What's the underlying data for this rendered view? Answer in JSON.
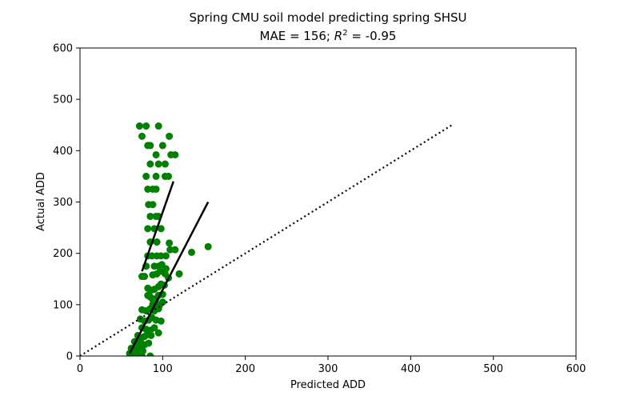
{
  "chart_data": {
    "type": "scatter",
    "title_line1": "Spring CMU soil model predicting spring SHSU",
    "title_line2_prefix": "MAE = 156; ",
    "title_line2_r": "R",
    "title_line2_sup": "2",
    "title_line2_suffix": " = -0.95",
    "xlabel": "Predicted ADD",
    "ylabel": "Actual ADD",
    "xlim": [
      0,
      600
    ],
    "ylim": [
      0,
      600
    ],
    "xticks": [
      0,
      100,
      200,
      300,
      400,
      500,
      600
    ],
    "yticks": [
      0,
      100,
      200,
      300,
      400,
      500,
      600
    ],
    "grid": false,
    "point_color": "#008000",
    "points": [
      [
        72,
        448
      ],
      [
        80,
        448
      ],
      [
        95,
        448
      ],
      [
        75,
        428
      ],
      [
        108,
        428
      ],
      [
        82,
        410
      ],
      [
        85,
        410
      ],
      [
        100,
        410
      ],
      [
        110,
        392
      ],
      [
        115,
        392
      ],
      [
        92,
        392
      ],
      [
        85,
        374
      ],
      [
        95,
        374
      ],
      [
        103,
        374
      ],
      [
        80,
        350
      ],
      [
        92,
        350
      ],
      [
        103,
        350
      ],
      [
        107,
        350
      ],
      [
        82,
        325
      ],
      [
        88,
        325
      ],
      [
        92,
        325
      ],
      [
        88,
        295
      ],
      [
        83,
        295
      ],
      [
        85,
        272
      ],
      [
        92,
        272
      ],
      [
        95,
        272
      ],
      [
        82,
        248
      ],
      [
        90,
        248
      ],
      [
        98,
        248
      ],
      [
        85,
        222
      ],
      [
        93,
        222
      ],
      [
        108,
        220
      ],
      [
        87,
        195
      ],
      [
        82,
        195
      ],
      [
        93,
        195
      ],
      [
        98,
        195
      ],
      [
        104,
        195
      ],
      [
        109,
        207
      ],
      [
        115,
        207
      ],
      [
        80,
        175
      ],
      [
        90,
        175
      ],
      [
        95,
        175
      ],
      [
        99,
        178
      ],
      [
        104,
        170
      ],
      [
        135,
        202
      ],
      [
        155,
        213
      ],
      [
        75,
        155
      ],
      [
        78,
        155
      ],
      [
        88,
        158
      ],
      [
        93,
        160
      ],
      [
        97,
        165
      ],
      [
        103,
        160
      ],
      [
        107,
        152
      ],
      [
        120,
        160
      ],
      [
        82,
        132
      ],
      [
        86,
        128
      ],
      [
        90,
        130
      ],
      [
        95,
        135
      ],
      [
        98,
        140
      ],
      [
        102,
        138
      ],
      [
        85,
        115
      ],
      [
        88,
        110
      ],
      [
        92,
        112
      ],
      [
        95,
        118
      ],
      [
        100,
        120
      ],
      [
        82,
        118
      ],
      [
        88,
        100
      ],
      [
        92,
        102
      ],
      [
        96,
        98
      ],
      [
        100,
        105
      ],
      [
        75,
        90
      ],
      [
        80,
        88
      ],
      [
        85,
        92
      ],
      [
        90,
        88
      ],
      [
        95,
        92
      ],
      [
        73,
        72
      ],
      [
        78,
        68
      ],
      [
        83,
        70
      ],
      [
        87,
        75
      ],
      [
        92,
        70
      ],
      [
        98,
        68
      ],
      [
        75,
        55
      ],
      [
        80,
        52
      ],
      [
        85,
        50
      ],
      [
        90,
        55
      ],
      [
        95,
        45
      ],
      [
        70,
        40
      ],
      [
        74,
        35
      ],
      [
        78,
        38
      ],
      [
        82,
        42
      ],
      [
        86,
        40
      ],
      [
        66,
        28
      ],
      [
        70,
        30
      ],
      [
        74,
        25
      ],
      [
        78,
        22
      ],
      [
        83,
        25
      ],
      [
        62,
        15
      ],
      [
        65,
        12
      ],
      [
        68,
        18
      ],
      [
        72,
        15
      ],
      [
        76,
        10
      ],
      [
        60,
        5
      ],
      [
        63,
        3
      ],
      [
        66,
        2
      ],
      [
        70,
        5
      ],
      [
        74,
        3
      ],
      [
        64,
        8
      ],
      [
        67,
        10
      ],
      [
        71,
        8
      ],
      [
        75,
        0
      ],
      [
        85,
        0
      ],
      [
        68,
        0
      ],
      [
        72,
        0
      ]
    ],
    "trend_lines": [
      {
        "style": "solid",
        "x": [
          75,
          113
        ],
        "y": [
          165,
          340
        ]
      },
      {
        "style": "solid",
        "x": [
          60,
          155
        ],
        "y": [
          5,
          300
        ]
      },
      {
        "style": "dotted",
        "x": [
          0,
          450
        ],
        "y": [
          0,
          450
        ]
      }
    ]
  }
}
